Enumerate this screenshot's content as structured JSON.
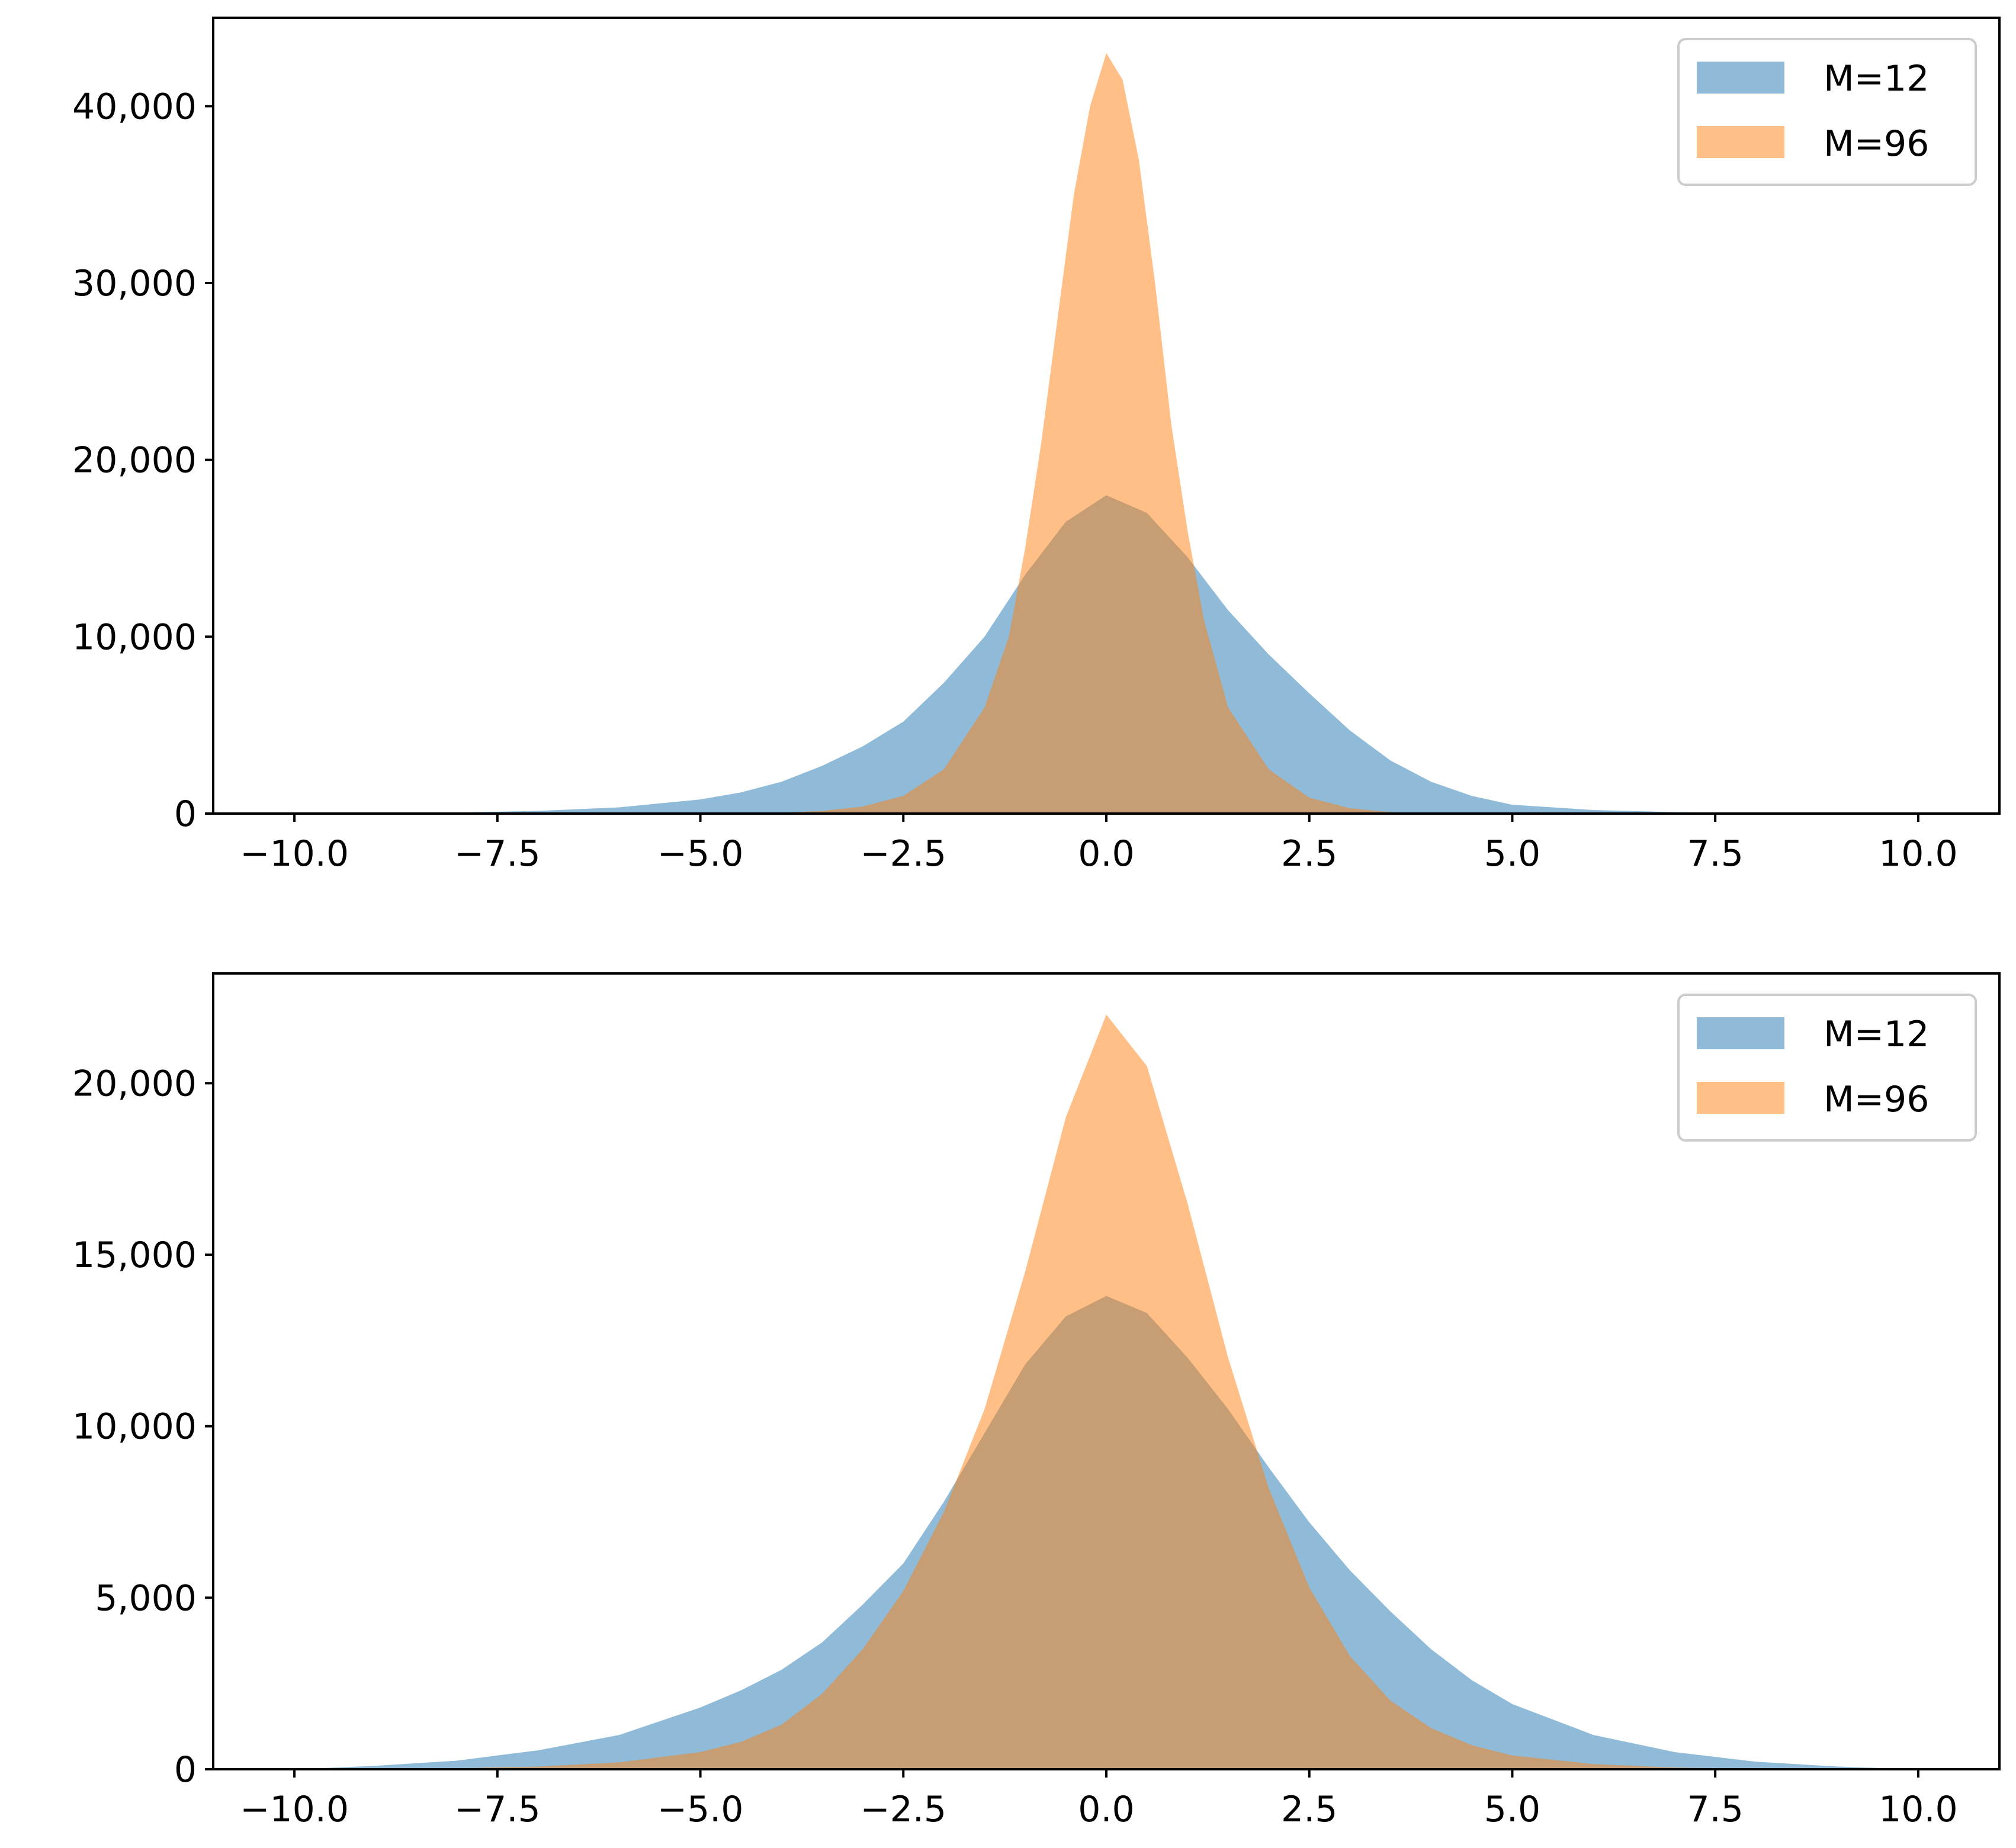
{
  "chart_data": [
    {
      "type": "histogram",
      "title": "",
      "xlabel": "",
      "ylabel": "",
      "xlim": [
        -11,
        11
      ],
      "ylim": [
        0,
        45000
      ],
      "x_ticks": [
        -10.0,
        -7.5,
        -5.0,
        -2.5,
        0.0,
        2.5,
        5.0,
        7.5,
        10.0
      ],
      "x_tick_labels": [
        "−10.0",
        "−7.5",
        "−5.0",
        "−2.5",
        "0.0",
        "2.5",
        "5.0",
        "7.5",
        "10.0"
      ],
      "y_ticks": [
        0,
        10000,
        20000,
        30000,
        40000
      ],
      "y_tick_labels": [
        "0",
        "10,000",
        "20,000",
        "30,000",
        "40,000"
      ],
      "legend_position": "upper right",
      "grid": false,
      "series": [
        {
          "name": "M=12",
          "color": "#1f77b4",
          "alpha": 0.5,
          "bins": [
            {
              "x": -10.0,
              "count": 0
            },
            {
              "x": -9.0,
              "count": 20
            },
            {
              "x": -8.0,
              "count": 60
            },
            {
              "x": -7.0,
              "count": 150
            },
            {
              "x": -6.0,
              "count": 350
            },
            {
              "x": -5.0,
              "count": 800
            },
            {
              "x": -4.5,
              "count": 1200
            },
            {
              "x": -4.0,
              "count": 1800
            },
            {
              "x": -3.5,
              "count": 2700
            },
            {
              "x": -3.0,
              "count": 3800
            },
            {
              "x": -2.5,
              "count": 5200
            },
            {
              "x": -2.0,
              "count": 7400
            },
            {
              "x": -1.5,
              "count": 10000
            },
            {
              "x": -1.0,
              "count": 13500
            },
            {
              "x": -0.5,
              "count": 16500
            },
            {
              "x": 0.0,
              "count": 18000
            },
            {
              "x": 0.5,
              "count": 17000
            },
            {
              "x": 1.0,
              "count": 14500
            },
            {
              "x": 1.5,
              "count": 11500
            },
            {
              "x": 2.0,
              "count": 9000
            },
            {
              "x": 2.5,
              "count": 6800
            },
            {
              "x": 3.0,
              "count": 4700
            },
            {
              "x": 3.5,
              "count": 3000
            },
            {
              "x": 4.0,
              "count": 1800
            },
            {
              "x": 4.5,
              "count": 1000
            },
            {
              "x": 5.0,
              "count": 500
            },
            {
              "x": 6.0,
              "count": 200
            },
            {
              "x": 7.0,
              "count": 80
            },
            {
              "x": 8.0,
              "count": 30
            },
            {
              "x": 9.0,
              "count": 10
            },
            {
              "x": 10.0,
              "count": 0
            }
          ]
        },
        {
          "name": "M=96",
          "color": "#ff7f0e",
          "alpha": 0.5,
          "bins": [
            {
              "x": -10.0,
              "count": 0
            },
            {
              "x": -5.0,
              "count": 0
            },
            {
              "x": -4.0,
              "count": 50
            },
            {
              "x": -3.5,
              "count": 150
            },
            {
              "x": -3.0,
              "count": 400
            },
            {
              "x": -2.5,
              "count": 1000
            },
            {
              "x": -2.0,
              "count": 2500
            },
            {
              "x": -1.5,
              "count": 6000
            },
            {
              "x": -1.2,
              "count": 10000
            },
            {
              "x": -1.0,
              "count": 15000
            },
            {
              "x": -0.8,
              "count": 21000
            },
            {
              "x": -0.6,
              "count": 28000
            },
            {
              "x": -0.4,
              "count": 35000
            },
            {
              "x": -0.2,
              "count": 40000
            },
            {
              "x": 0.0,
              "count": 43000
            },
            {
              "x": 0.2,
              "count": 41500
            },
            {
              "x": 0.4,
              "count": 37000
            },
            {
              "x": 0.6,
              "count": 30000
            },
            {
              "x": 0.8,
              "count": 22000
            },
            {
              "x": 1.0,
              "count": 16000
            },
            {
              "x": 1.2,
              "count": 11000
            },
            {
              "x": 1.5,
              "count": 6000
            },
            {
              "x": 2.0,
              "count": 2500
            },
            {
              "x": 2.5,
              "count": 900
            },
            {
              "x": 3.0,
              "count": 300
            },
            {
              "x": 3.5,
              "count": 80
            },
            {
              "x": 4.0,
              "count": 20
            },
            {
              "x": 5.0,
              "count": 0
            },
            {
              "x": 10.0,
              "count": 0
            }
          ]
        }
      ]
    },
    {
      "type": "histogram",
      "title": "",
      "xlabel": "",
      "ylabel": "",
      "xlim": [
        -11,
        11
      ],
      "ylim": [
        0,
        23200
      ],
      "x_ticks": [
        -10.0,
        -7.5,
        -5.0,
        -2.5,
        0.0,
        2.5,
        5.0,
        7.5,
        10.0
      ],
      "x_tick_labels": [
        "−10.0",
        "−7.5",
        "−5.0",
        "−2.5",
        "0.0",
        "2.5",
        "5.0",
        "7.5",
        "10.0"
      ],
      "y_ticks": [
        0,
        5000,
        10000,
        15000,
        20000
      ],
      "y_tick_labels": [
        "0",
        "5,000",
        "10,000",
        "15,000",
        "20,000"
      ],
      "legend_position": "upper right",
      "grid": false,
      "series": [
        {
          "name": "M=12",
          "color": "#1f77b4",
          "alpha": 0.5,
          "bins": [
            {
              "x": -10.0,
              "count": 0
            },
            {
              "x": -9.0,
              "count": 100
            },
            {
              "x": -8.0,
              "count": 250
            },
            {
              "x": -7.0,
              "count": 550
            },
            {
              "x": -6.0,
              "count": 1000
            },
            {
              "x": -5.0,
              "count": 1800
            },
            {
              "x": -4.5,
              "count": 2300
            },
            {
              "x": -4.0,
              "count": 2900
            },
            {
              "x": -3.5,
              "count": 3700
            },
            {
              "x": -3.0,
              "count": 4800
            },
            {
              "x": -2.5,
              "count": 6000
            },
            {
              "x": -2.0,
              "count": 7800
            },
            {
              "x": -1.5,
              "count": 9800
            },
            {
              "x": -1.0,
              "count": 11800
            },
            {
              "x": -0.5,
              "count": 13200
            },
            {
              "x": 0.0,
              "count": 13800
            },
            {
              "x": 0.5,
              "count": 13300
            },
            {
              "x": 1.0,
              "count": 12000
            },
            {
              "x": 1.5,
              "count": 10500
            },
            {
              "x": 2.0,
              "count": 8800
            },
            {
              "x": 2.5,
              "count": 7200
            },
            {
              "x": 3.0,
              "count": 5800
            },
            {
              "x": 3.5,
              "count": 4600
            },
            {
              "x": 4.0,
              "count": 3500
            },
            {
              "x": 4.5,
              "count": 2600
            },
            {
              "x": 5.0,
              "count": 1900
            },
            {
              "x": 6.0,
              "count": 1000
            },
            {
              "x": 7.0,
              "count": 500
            },
            {
              "x": 8.0,
              "count": 220
            },
            {
              "x": 9.0,
              "count": 80
            },
            {
              "x": 10.0,
              "count": 0
            }
          ]
        },
        {
          "name": "M=96",
          "color": "#ff7f0e",
          "alpha": 0.5,
          "bins": [
            {
              "x": -10.0,
              "count": 0
            },
            {
              "x": -8.0,
              "count": 30
            },
            {
              "x": -7.0,
              "count": 80
            },
            {
              "x": -6.0,
              "count": 200
            },
            {
              "x": -5.0,
              "count": 500
            },
            {
              "x": -4.5,
              "count": 800
            },
            {
              "x": -4.0,
              "count": 1300
            },
            {
              "x": -3.5,
              "count": 2200
            },
            {
              "x": -3.0,
              "count": 3500
            },
            {
              "x": -2.5,
              "count": 5200
            },
            {
              "x": -2.0,
              "count": 7500
            },
            {
              "x": -1.5,
              "count": 10500
            },
            {
              "x": -1.0,
              "count": 14500
            },
            {
              "x": -0.5,
              "count": 19000
            },
            {
              "x": 0.0,
              "count": 22000
            },
            {
              "x": 0.5,
              "count": 20500
            },
            {
              "x": 1.0,
              "count": 16500
            },
            {
              "x": 1.5,
              "count": 12000
            },
            {
              "x": 2.0,
              "count": 8200
            },
            {
              "x": 2.5,
              "count": 5300
            },
            {
              "x": 3.0,
              "count": 3300
            },
            {
              "x": 3.5,
              "count": 2000
            },
            {
              "x": 4.0,
              "count": 1200
            },
            {
              "x": 4.5,
              "count": 700
            },
            {
              "x": 5.0,
              "count": 400
            },
            {
              "x": 6.0,
              "count": 150
            },
            {
              "x": 7.0,
              "count": 50
            },
            {
              "x": 8.0,
              "count": 15
            },
            {
              "x": 10.0,
              "count": 0
            }
          ]
        }
      ]
    }
  ]
}
